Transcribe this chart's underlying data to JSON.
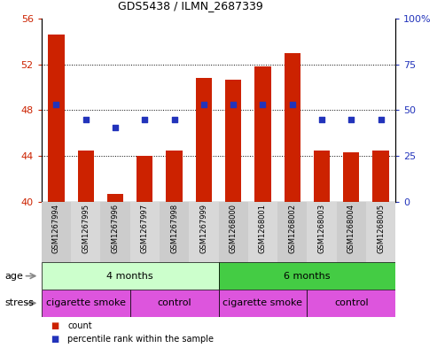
{
  "title": "GDS5438 / ILMN_2687339",
  "samples": [
    "GSM1267994",
    "GSM1267995",
    "GSM1267996",
    "GSM1267997",
    "GSM1267998",
    "GSM1267999",
    "GSM1268000",
    "GSM1268001",
    "GSM1268002",
    "GSM1268003",
    "GSM1268004",
    "GSM1268005"
  ],
  "counts": [
    54.6,
    44.5,
    40.7,
    44.0,
    44.5,
    50.8,
    50.7,
    51.8,
    53.0,
    44.5,
    44.3,
    44.5
  ],
  "percentiles": [
    48.5,
    47.2,
    46.5,
    47.2,
    47.2,
    48.5,
    48.5,
    48.5,
    48.5,
    47.2,
    47.2,
    47.2
  ],
  "ylim_left": [
    40,
    56
  ],
  "ylim_right": [
    0,
    100
  ],
  "yticks_left": [
    40,
    44,
    48,
    52,
    56
  ],
  "yticks_right": [
    0,
    25,
    50,
    75,
    100
  ],
  "ytick_labels_left": [
    "40",
    "44",
    "48",
    "52",
    "56"
  ],
  "ytick_labels_right": [
    "0",
    "25",
    "50",
    "75",
    "100%"
  ],
  "hlines": [
    44,
    48,
    52
  ],
  "bar_color": "#cc2200",
  "percentile_color": "#2233bb",
  "bar_bottom": 40,
  "age_groups": [
    {
      "label": "4 months",
      "start": 0,
      "end": 5,
      "color": "#ccffcc"
    },
    {
      "label": "6 months",
      "start": 6,
      "end": 11,
      "color": "#44cc44"
    }
  ],
  "stress_groups": [
    {
      "label": "cigarette smoke",
      "start": 0,
      "end": 2,
      "color": "#dd55dd"
    },
    {
      "label": "control",
      "start": 3,
      "end": 5,
      "color": "#dd55dd"
    },
    {
      "label": "cigarette smoke",
      "start": 6,
      "end": 8,
      "color": "#dd55dd"
    },
    {
      "label": "control",
      "start": 9,
      "end": 11,
      "color": "#dd55dd"
    }
  ],
  "legend_items": [
    {
      "label": "count",
      "color": "#cc2200"
    },
    {
      "label": "percentile rank within the sample",
      "color": "#2233bb"
    }
  ],
  "tick_color_left": "#cc2200",
  "tick_color_right": "#2233bb",
  "background_color": "#ffffff",
  "fig_width": 4.93,
  "fig_height": 3.93,
  "fig_dpi": 100
}
